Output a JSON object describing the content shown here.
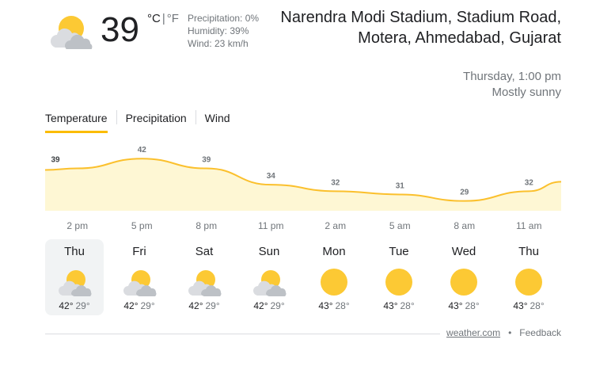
{
  "current": {
    "icon": "partly-cloudy-icon",
    "temperature": "39",
    "unit_c": "°C",
    "unit_f": "°F",
    "precipitation": "Precipitation: 0%",
    "humidity": "Humidity: 39%",
    "wind": "Wind: 23 km/h"
  },
  "location": {
    "name": "Narendra Modi Stadium, Stadium Road, Motera, Ahmedabad, Gujarat",
    "daytime": "Thursday, 1:00 pm",
    "condition": "Mostly sunny"
  },
  "tabs": [
    {
      "label": "Temperature",
      "active": true
    },
    {
      "label": "Precipitation",
      "active": false
    },
    {
      "label": "Wind",
      "active": false
    }
  ],
  "chart_data": {
    "type": "area",
    "x": [
      "2 pm",
      "5 pm",
      "8 pm",
      "11 pm",
      "2 am",
      "5 am",
      "8 am",
      "11 am"
    ],
    "series": [
      {
        "values": [
          39,
          42,
          39,
          34,
          32,
          31,
          29,
          32
        ]
      }
    ],
    "colors": {
      "line": "#fbc02d",
      "fill": "#fef7d4"
    }
  },
  "hours": [
    "2 pm",
    "5 pm",
    "8 pm",
    "11 pm",
    "2 am",
    "5 am",
    "8 am",
    "11 am"
  ],
  "forecast": [
    {
      "day": "Thu",
      "high": "42°",
      "low": "29°",
      "icon": "partly-cloudy-icon",
      "selected": true
    },
    {
      "day": "Fri",
      "high": "42°",
      "low": "29°",
      "icon": "partly-cloudy-icon",
      "selected": false
    },
    {
      "day": "Sat",
      "high": "42°",
      "low": "29°",
      "icon": "partly-cloudy-icon",
      "selected": false
    },
    {
      "day": "Sun",
      "high": "42°",
      "low": "29°",
      "icon": "partly-cloudy-icon",
      "selected": false
    },
    {
      "day": "Mon",
      "high": "43°",
      "low": "28°",
      "icon": "sunny-icon",
      "selected": false
    },
    {
      "day": "Tue",
      "high": "43°",
      "low": "28°",
      "icon": "sunny-icon",
      "selected": false
    },
    {
      "day": "Wed",
      "high": "43°",
      "low": "28°",
      "icon": "sunny-icon",
      "selected": false
    },
    {
      "day": "Thu",
      "high": "43°",
      "low": "28°",
      "icon": "sunny-icon",
      "selected": false
    }
  ],
  "footer": {
    "source": "weather.com",
    "separator": "•",
    "feedback": "Feedback"
  }
}
